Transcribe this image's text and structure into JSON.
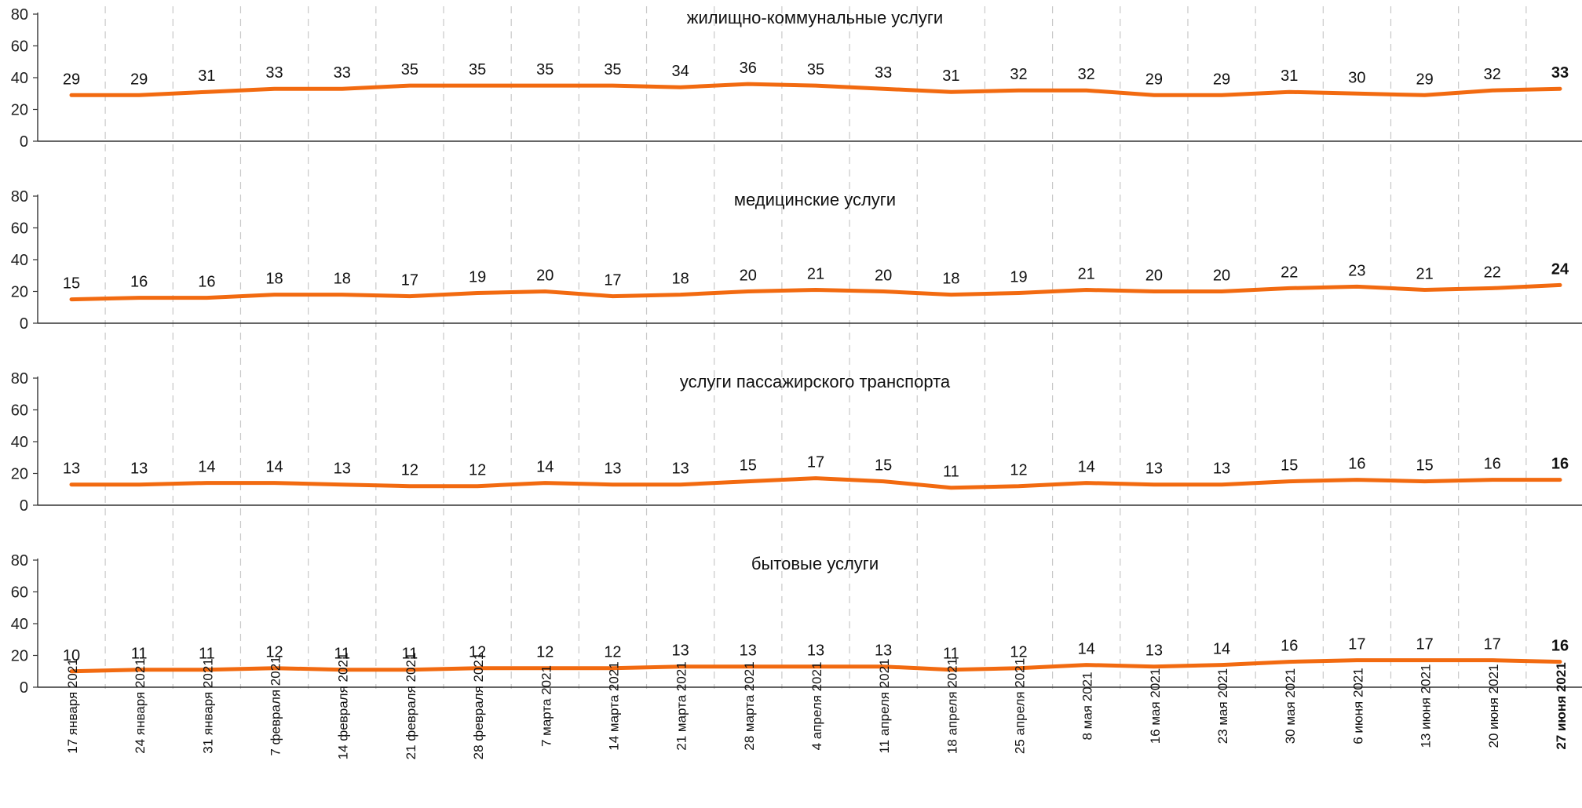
{
  "chart_data": {
    "type": "line",
    "x": [
      "17 января 2021",
      "24 января 2021",
      "31 января 2021",
      "7 февраля 2021",
      "14 февраля 2021",
      "21 февраля 2021",
      "28 февраля 2021",
      "7 марта 2021",
      "14 марта 2021",
      "21 марта 2021",
      "28 марта 2021",
      "4 апреля 2021",
      "11 апреля 2021",
      "18 апреля 2021",
      "25 апреля 2021",
      "8 мая 2021",
      "16 мая 2021",
      "23 мая 2021",
      "30 мая 2021",
      "6 июня 2021",
      "13 июня 2021",
      "20 июня 2021",
      "27 июня 2021"
    ],
    "ylim": [
      0,
      80
    ],
    "yticks": [
      0,
      20,
      40,
      60,
      80
    ],
    "highlight_last": true,
    "line_color": "#F26A10",
    "grid": "vertical dashed",
    "panels": [
      {
        "title": "жилищно-коммунальные услуги",
        "values": [
          29,
          29,
          31,
          33,
          33,
          35,
          35,
          35,
          35,
          34,
          36,
          35,
          33,
          31,
          32,
          32,
          29,
          29,
          31,
          30,
          29,
          32,
          33
        ]
      },
      {
        "title": "медицинские услуги",
        "values": [
          15,
          16,
          16,
          18,
          18,
          17,
          19,
          20,
          17,
          18,
          20,
          21,
          20,
          18,
          19,
          21,
          20,
          20,
          22,
          23,
          21,
          22,
          24
        ]
      },
      {
        "title": "услуги пассажирского транспорта",
        "values": [
          13,
          13,
          14,
          14,
          13,
          12,
          12,
          14,
          13,
          13,
          15,
          17,
          15,
          11,
          12,
          14,
          13,
          13,
          15,
          16,
          15,
          16,
          16
        ]
      },
      {
        "title": "бытовые услуги",
        "values": [
          10,
          11,
          11,
          12,
          11,
          11,
          12,
          12,
          12,
          13,
          13,
          13,
          13,
          11,
          12,
          14,
          13,
          14,
          16,
          17,
          17,
          17,
          16
        ]
      }
    ]
  }
}
